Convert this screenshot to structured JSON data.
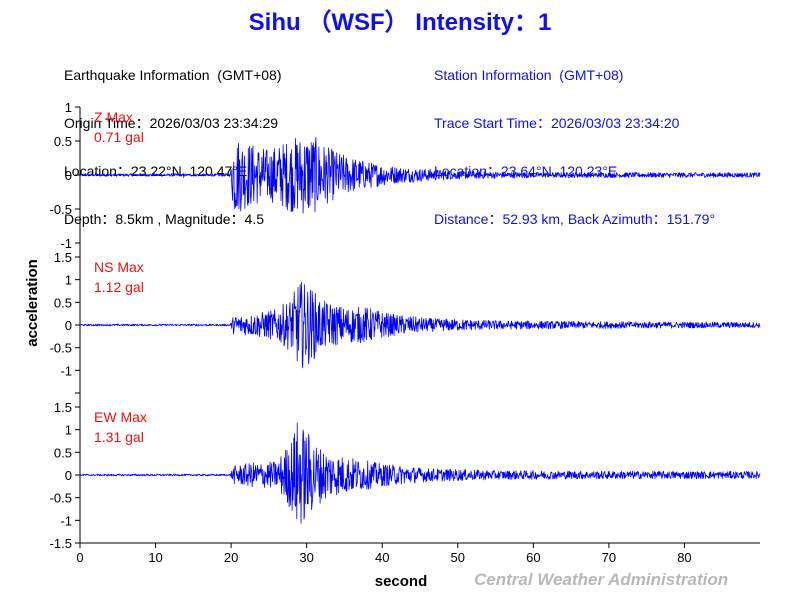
{
  "header": {
    "title": "Sihu （WSF） Intensity：1"
  },
  "earthquake_info": {
    "heading": "Earthquake Information  (GMT+08)",
    "origin_time": "Origin Time：2026/03/03 23:34:29",
    "location": "Location：23.22°N, 120.47°E",
    "depth_magnitude": "Depth：8.5km , Magnitude：4.5"
  },
  "station_info": {
    "heading": "Station Information  (GMT+08)",
    "trace_start": "Trace Start Time：2026/03/03 23:34:20",
    "location": "Location：23.64°N, 120.23°E",
    "distance": "Distance：52.93 km, Back Azimuth：151.79°"
  },
  "credit": "Central Weather Administration",
  "colors": {
    "title": "#1010ee",
    "trace": "#0000ff",
    "max_label": "#ee1010",
    "station_text": "#1010ee",
    "credit": "#b8b8b8"
  },
  "chart_data": {
    "type": "line",
    "xlabel": "second",
    "ylabel": "acceleration",
    "xlim": [
      0,
      90
    ],
    "x_ticks": [
      "0",
      "10",
      "20",
      "30",
      "40",
      "50",
      "60",
      "70",
      "80"
    ],
    "onset_s": 20,
    "panels": [
      {
        "name": "Z",
        "max_label": "Z Max",
        "max_value": "0.71 gal",
        "ylim": [
          -1,
          1
        ],
        "y_ticks": [
          -1,
          -0.5,
          0,
          0.5,
          1
        ],
        "y_tick_labels": [
          "-1",
          "-0.5",
          "0",
          "0.5",
          "1"
        ],
        "envelope": [
          [
            0,
            0.02
          ],
          [
            19.9,
            0.02
          ],
          [
            20.3,
            0.6
          ],
          [
            22,
            0.5
          ],
          [
            25,
            0.38
          ],
          [
            28,
            0.55
          ],
          [
            30.5,
            0.62
          ],
          [
            33,
            0.4
          ],
          [
            35,
            0.3
          ],
          [
            38,
            0.2
          ],
          [
            42,
            0.12
          ],
          [
            50,
            0.06
          ],
          [
            60,
            0.04
          ],
          [
            90,
            0.035
          ]
        ]
      },
      {
        "name": "NS",
        "max_label": "NS Max",
        "max_value": "1.12 gal",
        "ylim": [
          -1.5,
          1.5
        ],
        "y_ticks": [
          -1.5,
          -1,
          -0.5,
          0,
          0.5,
          1,
          1.5
        ],
        "y_tick_labels": [
          "",
          "-1",
          "-0.5",
          "0",
          "0.5",
          "1",
          "1.5"
        ],
        "envelope": [
          [
            0,
            0.02
          ],
          [
            19.9,
            0.02
          ],
          [
            20.3,
            0.2
          ],
          [
            23,
            0.25
          ],
          [
            26,
            0.35
          ],
          [
            28,
            0.6
          ],
          [
            29,
            1.0
          ],
          [
            30.5,
            0.85
          ],
          [
            32,
            0.55
          ],
          [
            35,
            0.4
          ],
          [
            38,
            0.4
          ],
          [
            41,
            0.25
          ],
          [
            46,
            0.15
          ],
          [
            55,
            0.1
          ],
          [
            65,
            0.08
          ],
          [
            90,
            0.06
          ]
        ]
      },
      {
        "name": "EW",
        "max_label": "EW Max",
        "max_value": "1.31 gal",
        "ylim": [
          -1.5,
          1.5
        ],
        "y_ticks": [
          -1.5,
          -1,
          -0.5,
          0,
          0.5,
          1,
          1.5
        ],
        "y_tick_labels": [
          "-1.5",
          "-1",
          "-0.5",
          "0",
          "0.5",
          "1",
          "1.5"
        ],
        "envelope": [
          [
            0,
            0.02
          ],
          [
            19.9,
            0.02
          ],
          [
            20.3,
            0.2
          ],
          [
            23,
            0.28
          ],
          [
            26,
            0.3
          ],
          [
            28,
            0.8
          ],
          [
            28.8,
            1.25
          ],
          [
            30,
            1.0
          ],
          [
            31.5,
            0.65
          ],
          [
            34,
            0.45
          ],
          [
            37,
            0.35
          ],
          [
            40,
            0.25
          ],
          [
            46,
            0.15
          ],
          [
            55,
            0.1
          ],
          [
            65,
            0.09
          ],
          [
            90,
            0.08
          ]
        ]
      }
    ]
  }
}
